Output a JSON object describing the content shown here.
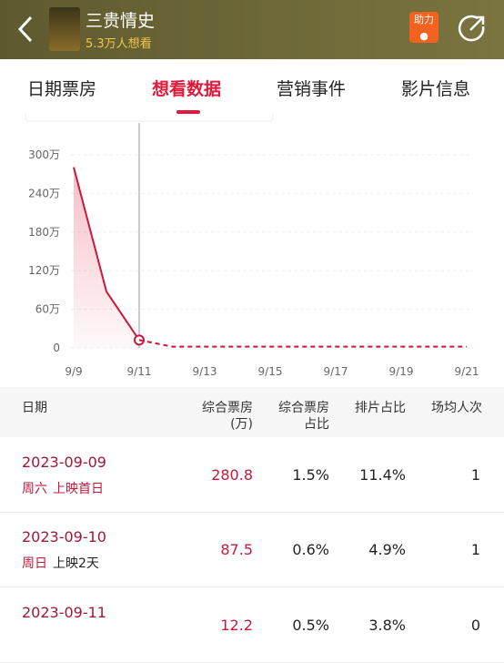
{
  "header": {
    "title": "三贵情史",
    "subtitle": "5.3万人想看",
    "boost": "助力"
  },
  "tabs": [
    "日期票房",
    "想看数据",
    "营销事件",
    "影片信息"
  ],
  "chart_data": {
    "type": "line",
    "categories": [
      "9/9",
      null,
      "9/11",
      null,
      "9/13",
      null,
      "9/15",
      null,
      "9/17",
      null,
      "9/19",
      null,
      "9/21"
    ],
    "series": [
      {
        "color": "#c8193c",
        "dash": false,
        "values": [
          280.8,
          87.5,
          12.2,
          null,
          null,
          null,
          null,
          null,
          null,
          null,
          null,
          null,
          null
        ]
      },
      {
        "color": "#c8193c",
        "dash": true,
        "values": [
          null,
          null,
          12.2,
          2,
          2,
          2,
          2,
          2,
          2,
          2,
          2,
          2,
          2
        ]
      }
    ],
    "ylim": [
      0,
      300
    ],
    "yticks": [
      0,
      {
        "value": 60,
        "label": "60万"
      },
      {
        "value": 120,
        "label": "120万"
      },
      {
        "value": 180,
        "label": "180万"
      },
      {
        "value": 240,
        "label": "240万"
      },
      {
        "value": 300,
        "label": "300万"
      }
    ],
    "grid": true
  },
  "table": {
    "header": [
      [
        "日期"
      ],
      [
        "综合票房",
        "(万)"
      ],
      [
        "综合票房",
        "占比"
      ],
      [
        "排片占比"
      ],
      [
        "场均人次"
      ]
    ],
    "rows": [
      [
        "2023-09-09",
        "周六",
        "上映首日",
        "280.8",
        "1.5%",
        "11.4%",
        "1"
      ],
      [
        "2023-09-10",
        "周日",
        "上映2天",
        "87.5",
        "0.6%",
        "4.9%",
        "1"
      ],
      [
        "2023-09-11",
        "",
        "",
        "12.2",
        "0.5%",
        "3.8%",
        "0"
      ]
    ]
  }
}
